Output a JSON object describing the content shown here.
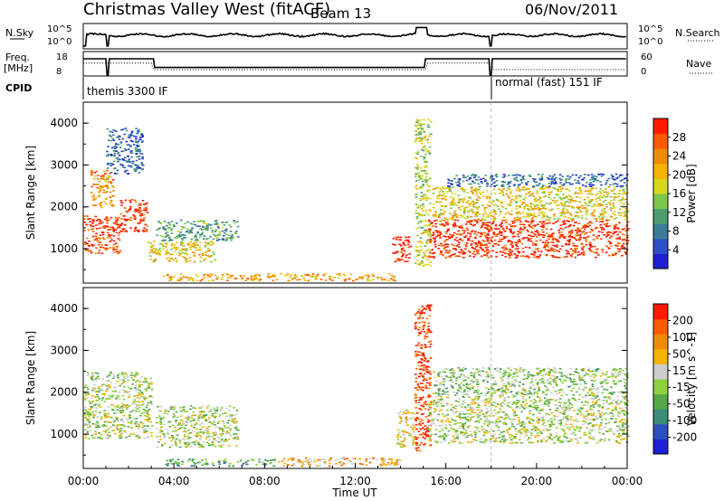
{
  "header": {
    "title": "Christmas Valley West (fitACF)",
    "beam": "Beam 13",
    "date": "06/Nov/2011"
  },
  "strip_labels": {
    "nsky": "N.Sky",
    "nsky_ticks": [
      "10^5",
      "10^0"
    ],
    "nsearch": "N.Search",
    "nsearch_ticks": [
      "10^5",
      "10^0"
    ],
    "freq": "Freq.",
    "freq_unit": "[MHz]",
    "freq_ticks": [
      "18",
      "8"
    ],
    "nave": "Nave",
    "nave_ticks": [
      "60",
      "0"
    ],
    "cpid": "CPID"
  },
  "cpid_modes": [
    {
      "label": "themis 3300 IF",
      "start_hour": 0,
      "end_hour": 18.0
    },
    {
      "label": "normal (fast) 151 IF",
      "start_hour": 18.0,
      "end_hour": 24
    }
  ],
  "chart_data": [
    {
      "type": "heatmap",
      "name": "power-panel",
      "ylabel": "Slant Range [km]",
      "y_ticks": [
        "1000",
        "2000",
        "3000",
        "4000"
      ],
      "ylim": [
        180,
        4500
      ],
      "xlim": [
        0,
        24
      ],
      "colorbar": {
        "label": "Power [dB]",
        "ticks": [
          "28",
          "24",
          "20",
          "16",
          "12",
          "8",
          "4"
        ],
        "colors": [
          "#1f1fd6",
          "#2b50c8",
          "#3a7d9a",
          "#4d9e6e",
          "#7cc84a",
          "#d8d81a",
          "#f4b400",
          "#f08a00",
          "#ff5a00",
          "#ff1a00"
        ]
      },
      "regions": [
        {
          "x": [
            0.0,
            1.6
          ],
          "y": [
            900,
            1800
          ],
          "level": 0.9
        },
        {
          "x": [
            0.3,
            1.3
          ],
          "y": [
            2000,
            2900
          ],
          "level": 0.75
        },
        {
          "x": [
            1.6,
            2.8
          ],
          "y": [
            1400,
            2200
          ],
          "level": 0.95
        },
        {
          "x": [
            1.0,
            2.6
          ],
          "y": [
            2800,
            3900
          ],
          "level": 0.2
        },
        {
          "x": [
            3.2,
            6.8
          ],
          "y": [
            1200,
            1700
          ],
          "level": 0.35
        },
        {
          "x": [
            2.8,
            5.8
          ],
          "y": [
            700,
            1200
          ],
          "level": 0.6
        },
        {
          "x": [
            3.5,
            13.8
          ],
          "y": [
            250,
            420
          ],
          "level": 0.7
        },
        {
          "x": [
            13.6,
            14.4
          ],
          "y": [
            700,
            1300
          ],
          "level": 1.0
        },
        {
          "x": [
            14.6,
            15.3
          ],
          "y": [
            600,
            4100
          ],
          "level": 0.5
        },
        {
          "x": [
            15.2,
            24.0
          ],
          "y": [
            800,
            1700
          ],
          "level": 0.95
        },
        {
          "x": [
            15.4,
            24.0
          ],
          "y": [
            1700,
            2500
          ],
          "level": 0.6
        },
        {
          "x": [
            16.0,
            24.0
          ],
          "y": [
            2500,
            2800
          ],
          "level": 0.2
        }
      ]
    },
    {
      "type": "heatmap",
      "name": "velocity-panel",
      "ylabel": "Slant Range [km]",
      "y_ticks": [
        "1000",
        "2000",
        "3000",
        "4000"
      ],
      "ylim": [
        180,
        4500
      ],
      "xlim": [
        0,
        24
      ],
      "colorbar": {
        "label": "Velocity [m s^-1]",
        "ticks": [
          "200",
          "100",
          "50",
          "15",
          "-15",
          "-50",
          "-100",
          "-200"
        ],
        "colors": [
          "#1f1fd6",
          "#2c4fc2",
          "#3c8c7a",
          "#55a84a",
          "#8dd13c",
          "#cccccc",
          "#f4b400",
          "#f08a00",
          "#ff5a00",
          "#ff1a00"
        ]
      },
      "regions": [
        {
          "x": [
            0.0,
            3.0
          ],
          "y": [
            900,
            2500
          ],
          "level": 0.5
        },
        {
          "x": [
            3.2,
            6.8
          ],
          "y": [
            700,
            1700
          ],
          "level": 0.5
        },
        {
          "x": [
            3.5,
            8.5
          ],
          "y": [
            250,
            420
          ],
          "level": 0.35
        },
        {
          "x": [
            8.5,
            14.0
          ],
          "y": [
            250,
            450
          ],
          "level": 0.68
        },
        {
          "x": [
            13.8,
            14.6
          ],
          "y": [
            700,
            1600
          ],
          "level": 0.6
        },
        {
          "x": [
            14.6,
            15.3
          ],
          "y": [
            600,
            4100
          ],
          "level": 0.9
        },
        {
          "x": [
            15.2,
            24.0
          ],
          "y": [
            800,
            1900
          ],
          "level": 0.5
        },
        {
          "x": [
            15.4,
            24.0
          ],
          "y": [
            1900,
            2600
          ],
          "level": 0.45
        }
      ]
    }
  ],
  "x_ticks": [
    "00:00",
    "04:00",
    "08:00",
    "12:00",
    "16:00",
    "20:00",
    "00:00"
  ],
  "xlabel": "Time UT"
}
